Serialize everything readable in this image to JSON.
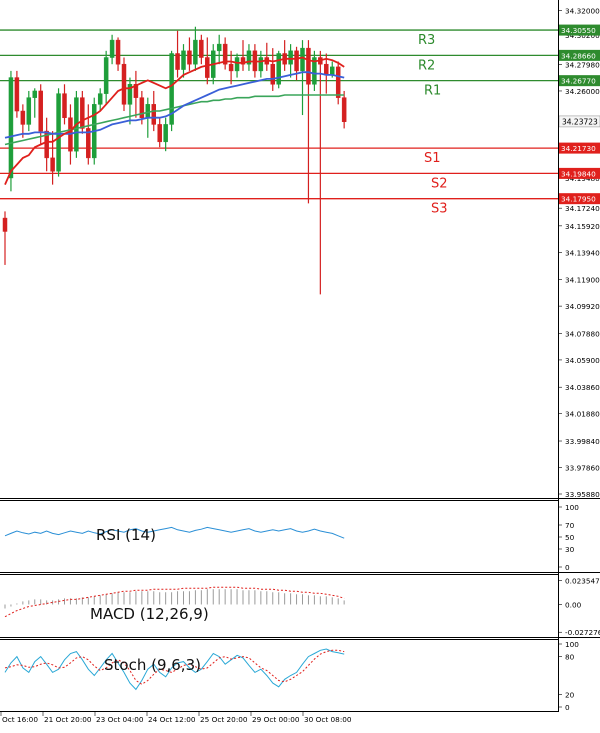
{
  "chart_data": {
    "type": "candlestick",
    "main": {
      "ylim": [
        33.9588,
        34.322
      ],
      "y_ticks": [
        "34.32000",
        "34.30200",
        "34.27980",
        "34.26000",
        "34.23760",
        "34.21730",
        "34.19480",
        "34.17240",
        "34.15920",
        "34.13940",
        "34.11900",
        "34.09920",
        "34.07880",
        "34.05900",
        "34.03860",
        "34.01880",
        "33.99840",
        "33.97860",
        "33.95880"
      ],
      "current_price": "34.23723",
      "levels": [
        {
          "name": "R3",
          "value": 34.3055,
          "label": "34.30550",
          "color": "#2e8b2e"
        },
        {
          "name": "R2",
          "value": 34.2866,
          "label": "34.28660",
          "color": "#2e8b2e"
        },
        {
          "name": "R1",
          "value": 34.2677,
          "label": "34.26770",
          "color": "#2e8b2e"
        },
        {
          "name": "S1",
          "value": 34.2173,
          "label": "34.21730",
          "color": "#e0201c"
        },
        {
          "name": "S2",
          "value": 34.1984,
          "label": "34.19840",
          "color": "#e0201c"
        },
        {
          "name": "S3",
          "value": 34.1795,
          "label": "34.17950",
          "color": "#e0201c"
        }
      ],
      "candles": [
        {
          "o": 34.165,
          "h": 34.17,
          "l": 34.13,
          "c": 34.155
        },
        {
          "o": 34.195,
          "h": 34.275,
          "l": 34.185,
          "c": 34.27
        },
        {
          "o": 34.27,
          "h": 34.275,
          "l": 34.24,
          "c": 34.245
        },
        {
          "o": 34.245,
          "h": 34.25,
          "l": 34.225,
          "c": 34.235
        },
        {
          "o": 34.235,
          "h": 34.26,
          "l": 34.23,
          "c": 34.255
        },
        {
          "o": 34.255,
          "h": 34.262,
          "l": 34.24,
          "c": 34.26
        },
        {
          "o": 34.26,
          "h": 34.265,
          "l": 34.22,
          "c": 34.23
        },
        {
          "o": 34.23,
          "h": 34.24,
          "l": 34.2,
          "c": 34.21
        },
        {
          "o": 34.21,
          "h": 34.23,
          "l": 34.19,
          "c": 34.2
        },
        {
          "o": 34.2,
          "h": 34.262,
          "l": 34.196,
          "c": 34.258
        },
        {
          "o": 34.258,
          "h": 34.265,
          "l": 34.235,
          "c": 34.24
        },
        {
          "o": 34.24,
          "h": 34.25,
          "l": 34.205,
          "c": 34.215
        },
        {
          "o": 34.215,
          "h": 34.26,
          "l": 34.21,
          "c": 34.255
        },
        {
          "o": 34.255,
          "h": 34.26,
          "l": 34.228,
          "c": 34.232
        },
        {
          "o": 34.232,
          "h": 34.25,
          "l": 34.205,
          "c": 34.21
        },
        {
          "o": 34.21,
          "h": 34.255,
          "l": 34.205,
          "c": 34.25
        },
        {
          "o": 34.25,
          "h": 34.262,
          "l": 34.245,
          "c": 34.258
        },
        {
          "o": 34.258,
          "h": 34.29,
          "l": 34.25,
          "c": 34.285
        },
        {
          "o": 34.285,
          "h": 34.302,
          "l": 34.28,
          "c": 34.298
        },
        {
          "o": 34.298,
          "h": 34.3,
          "l": 34.275,
          "c": 34.28
        },
        {
          "o": 34.28,
          "h": 34.285,
          "l": 34.245,
          "c": 34.25
        },
        {
          "o": 34.25,
          "h": 34.27,
          "l": 34.235,
          "c": 34.265
        },
        {
          "o": 34.265,
          "h": 34.275,
          "l": 34.24,
          "c": 34.255
        },
        {
          "o": 34.255,
          "h": 34.26,
          "l": 34.235,
          "c": 34.24
        },
        {
          "o": 34.24,
          "h": 34.255,
          "l": 34.225,
          "c": 34.25
        },
        {
          "o": 34.25,
          "h": 34.26,
          "l": 34.23,
          "c": 34.235
        },
        {
          "o": 34.235,
          "h": 34.24,
          "l": 34.218,
          "c": 34.222
        },
        {
          "o": 34.222,
          "h": 34.24,
          "l": 34.215,
          "c": 34.235
        },
        {
          "o": 34.235,
          "h": 34.29,
          "l": 34.23,
          "c": 34.288
        },
        {
          "o": 34.288,
          "h": 34.305,
          "l": 34.27,
          "c": 34.276
        },
        {
          "o": 34.276,
          "h": 34.295,
          "l": 34.27,
          "c": 34.29
        },
        {
          "o": 34.29,
          "h": 34.3,
          "l": 34.275,
          "c": 34.28
        },
        {
          "o": 34.28,
          "h": 34.308,
          "l": 34.275,
          "c": 34.298
        },
        {
          "o": 34.298,
          "h": 34.302,
          "l": 34.28,
          "c": 34.285
        },
        {
          "o": 34.285,
          "h": 34.3,
          "l": 34.265,
          "c": 34.27
        },
        {
          "o": 34.27,
          "h": 34.295,
          "l": 34.265,
          "c": 34.29
        },
        {
          "o": 34.29,
          "h": 34.302,
          "l": 34.28,
          "c": 34.295
        },
        {
          "o": 34.295,
          "h": 34.3,
          "l": 34.276,
          "c": 34.28
        },
        {
          "o": 34.28,
          "h": 34.29,
          "l": 34.265,
          "c": 34.275
        },
        {
          "o": 34.275,
          "h": 34.288,
          "l": 34.27,
          "c": 34.285
        },
        {
          "o": 34.285,
          "h": 34.298,
          "l": 34.275,
          "c": 34.28
        },
        {
          "o": 34.28,
          "h": 34.295,
          "l": 34.275,
          "c": 34.29
        },
        {
          "o": 34.29,
          "h": 34.295,
          "l": 34.27,
          "c": 34.275
        },
        {
          "o": 34.275,
          "h": 34.29,
          "l": 34.27,
          "c": 34.285
        },
        {
          "o": 34.285,
          "h": 34.296,
          "l": 34.275,
          "c": 34.28
        },
        {
          "o": 34.28,
          "h": 34.292,
          "l": 34.26,
          "c": 34.265
        },
        {
          "o": 34.265,
          "h": 34.29,
          "l": 34.262,
          "c": 34.288
        },
        {
          "o": 34.288,
          "h": 34.298,
          "l": 34.275,
          "c": 34.28
        },
        {
          "o": 34.28,
          "h": 34.295,
          "l": 34.27,
          "c": 34.29
        },
        {
          "o": 34.29,
          "h": 34.293,
          "l": 34.268,
          "c": 34.275
        },
        {
          "o": 34.275,
          "h": 34.298,
          "l": 34.242,
          "c": 34.292
        },
        {
          "o": 34.292,
          "h": 34.298,
          "l": 34.176,
          "c": 34.265
        },
        {
          "o": 34.265,
          "h": 34.29,
          "l": 34.26,
          "c": 34.285
        },
        {
          "o": 34.285,
          "h": 34.29,
          "l": 34.108,
          "c": 34.28
        },
        {
          "o": 34.28,
          "h": 34.288,
          "l": 34.258,
          "c": 34.272
        },
        {
          "o": 34.272,
          "h": 34.282,
          "l": 34.27,
          "c": 34.278
        },
        {
          "o": 34.278,
          "h": 34.282,
          "l": 34.25,
          "c": 34.255
        },
        {
          "o": 34.255,
          "h": 34.26,
          "l": 34.232,
          "c": 34.237
        }
      ],
      "ma_red": [
        34.19,
        34.2,
        34.205,
        34.21,
        34.212,
        34.218,
        34.22,
        34.222,
        34.222,
        34.225,
        34.228,
        34.23,
        34.235,
        34.238,
        34.24,
        34.242,
        34.245,
        34.25,
        34.255,
        34.26,
        34.262,
        34.262,
        34.264,
        34.266,
        34.268,
        34.266,
        34.264,
        34.262,
        34.264,
        34.268,
        34.272,
        34.274,
        34.276,
        34.278,
        34.279,
        34.28,
        34.281,
        34.282,
        34.282,
        34.281,
        34.281,
        34.282,
        34.282,
        34.282,
        34.283,
        34.282,
        34.283,
        34.284,
        34.284,
        34.284,
        34.285,
        34.283,
        34.282,
        34.283,
        34.284,
        34.283,
        34.281,
        34.278
      ],
      "ma_blue": [
        34.225,
        34.226,
        34.227,
        34.228,
        34.228,
        34.229,
        34.229,
        34.229,
        34.228,
        34.228,
        34.228,
        34.228,
        34.229,
        34.229,
        34.229,
        34.23,
        34.231,
        34.233,
        34.235,
        34.236,
        34.237,
        34.238,
        34.238,
        34.239,
        34.24,
        34.24,
        34.24,
        34.241,
        34.243,
        34.246,
        34.249,
        34.251,
        34.253,
        34.255,
        34.257,
        34.259,
        34.261,
        34.262,
        34.263,
        34.264,
        34.265,
        34.266,
        34.267,
        34.268,
        34.269,
        34.269,
        34.27,
        34.271,
        34.272,
        34.273,
        34.274,
        34.274,
        34.273,
        34.273,
        34.272,
        34.272,
        34.271,
        34.27
      ],
      "ma_green": [
        34.22,
        34.221,
        34.222,
        34.223,
        34.224,
        34.225,
        34.226,
        34.227,
        34.228,
        34.229,
        34.23,
        34.231,
        34.232,
        34.233,
        34.234,
        34.235,
        34.236,
        34.237,
        34.238,
        34.239,
        34.24,
        34.241,
        34.242,
        34.243,
        34.244,
        34.245,
        34.245,
        34.246,
        34.247,
        34.248,
        34.249,
        34.25,
        34.251,
        34.252,
        34.252,
        34.253,
        34.253,
        34.254,
        34.254,
        34.255,
        34.255,
        34.255,
        34.256,
        34.256,
        34.256,
        34.256,
        34.256,
        34.257,
        34.257,
        34.257,
        34.257,
        34.257,
        34.257,
        34.257,
        34.257,
        34.257,
        34.257,
        34.257
      ]
    },
    "rsi": {
      "label": "RSI (14)",
      "ylim": [
        0,
        100
      ],
      "y_ticks": [
        "100",
        "70",
        "50",
        "30",
        "0"
      ],
      "values": [
        52,
        56,
        60,
        57,
        55,
        58,
        56,
        60,
        56,
        54,
        57,
        60,
        58,
        56,
        60,
        57,
        55,
        59,
        62,
        60,
        58,
        62,
        64,
        60,
        58,
        60,
        62,
        64,
        66,
        62,
        60,
        58,
        61,
        63,
        66,
        64,
        62,
        60,
        58,
        60,
        62,
        64,
        60,
        58,
        60,
        62,
        60,
        62,
        64,
        60,
        58,
        60,
        63,
        60,
        58,
        56,
        52,
        48
      ]
    },
    "macd": {
      "label": "MACD (12,26,9)",
      "ylim": [
        -0.029,
        0.026
      ],
      "y_ticks": [
        "0.023547",
        "0.00",
        "-0.027276"
      ],
      "histogram": [
        -0.004,
        -0.002,
        0.001,
        0.003,
        0.004,
        0.005,
        0.005,
        0.004,
        0.004,
        0.005,
        0.006,
        0.006,
        0.006,
        0.007,
        0.007,
        0.008,
        0.009,
        0.01,
        0.011,
        0.012,
        0.012,
        0.012,
        0.013,
        0.013,
        0.013,
        0.013,
        0.012,
        0.012,
        0.012,
        0.013,
        0.013,
        0.013,
        0.014,
        0.014,
        0.015,
        0.015,
        0.015,
        0.015,
        0.015,
        0.015,
        0.014,
        0.014,
        0.014,
        0.013,
        0.013,
        0.012,
        0.012,
        0.011,
        0.011,
        0.01,
        0.01,
        0.009,
        0.009,
        0.008,
        0.008,
        0.007,
        0.006,
        0.004
      ],
      "signal": [
        -0.012,
        -0.009,
        -0.006,
        -0.004,
        -0.002,
        -0.001,
        0,
        0.001,
        0.002,
        0.003,
        0.004,
        0.005,
        0.005,
        0.006,
        0.007,
        0.008,
        0.009,
        0.01,
        0.011,
        0.012,
        0.013,
        0.013,
        0.014,
        0.014,
        0.014,
        0.015,
        0.015,
        0.015,
        0.015,
        0.015,
        0.016,
        0.016,
        0.016,
        0.016,
        0.016,
        0.017,
        0.017,
        0.017,
        0.017,
        0.017,
        0.016,
        0.016,
        0.016,
        0.015,
        0.015,
        0.015,
        0.014,
        0.014,
        0.013,
        0.013,
        0.012,
        0.012,
        0.011,
        0.011,
        0.01,
        0.009,
        0.008,
        0.006
      ]
    },
    "stoch": {
      "label": "Stoch (9,6,3)",
      "ylim": [
        0,
        100
      ],
      "y_ticks": [
        "100",
        "80",
        "20",
        "0"
      ],
      "k": [
        55,
        70,
        80,
        62,
        55,
        72,
        80,
        68,
        55,
        60,
        75,
        85,
        88,
        75,
        60,
        50,
        62,
        75,
        85,
        70,
        55,
        38,
        28,
        42,
        60,
        68,
        55,
        48,
        62,
        70,
        72,
        62,
        55,
        60,
        72,
        85,
        80,
        68,
        75,
        82,
        78,
        66,
        55,
        60,
        50,
        38,
        32,
        44,
        50,
        55,
        68,
        80,
        85,
        90,
        92,
        88,
        86,
        84
      ],
      "d": [
        62,
        64,
        67,
        66,
        63,
        64,
        68,
        70,
        67,
        62,
        63,
        70,
        78,
        80,
        75,
        65,
        58,
        62,
        70,
        75,
        70,
        58,
        42,
        36,
        42,
        52,
        60,
        58,
        55,
        60,
        66,
        68,
        64,
        60,
        62,
        70,
        78,
        80,
        76,
        78,
        80,
        78,
        70,
        62,
        58,
        50,
        42,
        40,
        44,
        50,
        56,
        66,
        76,
        84,
        88,
        90,
        90,
        88
      ]
    },
    "x_ticks": [
      "Oct 16:00",
      "21 Oct 20:00",
      "23 Oct 04:00",
      "24 Oct 12:00",
      "25 Oct 20:00",
      "29 Oct 00:00",
      "30 Oct 08:00"
    ]
  }
}
